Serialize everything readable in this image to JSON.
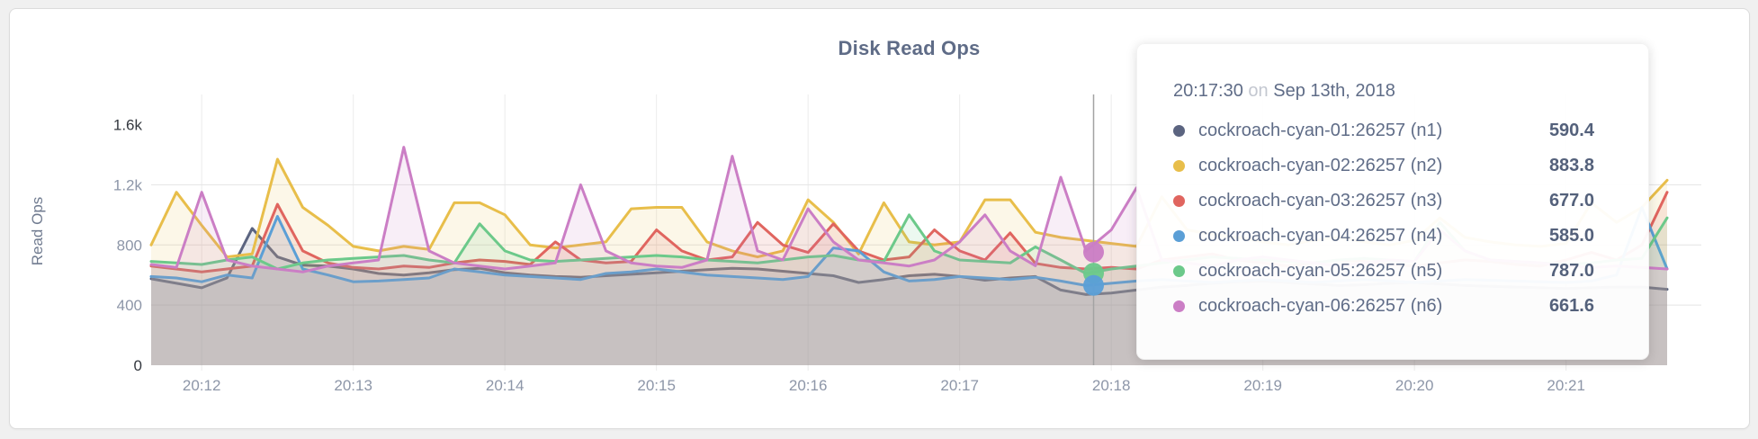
{
  "page": {
    "background": "#f0f0f0",
    "card_background": "#ffffff",
    "accent_text": "#5F6C87"
  },
  "chart": {
    "title": "Disk Read Ops"
  },
  "tooltip": {
    "time": "20:17:30",
    "on_word": "on",
    "date": "Sep 13th, 2018",
    "rows": [
      {
        "id": "n1",
        "name": "cockroach-cyan-01:26257 (n1)",
        "value": "590.4",
        "color": "#5b6480"
      },
      {
        "id": "n2",
        "name": "cockroach-cyan-02:26257 (n2)",
        "value": "883.8",
        "color": "#e8be4a"
      },
      {
        "id": "n3",
        "name": "cockroach-cyan-03:26257 (n3)",
        "value": "677.0",
        "color": "#e0655f"
      },
      {
        "id": "n4",
        "name": "cockroach-cyan-04:26257 (n4)",
        "value": "585.0",
        "color": "#5b9fd6"
      },
      {
        "id": "n5",
        "name": "cockroach-cyan-05:26257 (n5)",
        "value": "787.0",
        "color": "#6cc98a"
      },
      {
        "id": "n6",
        "name": "cockroach-cyan-06:26257 (n6)",
        "value": "661.6",
        "color": "#cb7ec5"
      }
    ]
  },
  "chart_data": {
    "type": "line",
    "area_fill": true,
    "grid": true,
    "title": "Disk Read Ops",
    "ylabel": "Read Ops",
    "xlabel": "",
    "x_start": "20:11:40",
    "x_step_seconds": 10,
    "x_end": "20:21:40",
    "x_tick_labels": [
      "20:12",
      "20:13",
      "20:14",
      "20:15",
      "20:16",
      "20:17",
      "20:18",
      "20:19",
      "20:20",
      "20:21"
    ],
    "x_first_tick_index": 2,
    "x_tick_index_step": 6,
    "y_ticks": [
      0,
      400,
      800,
      1200,
      1600
    ],
    "y_tick_labels": [
      "0",
      "400",
      "800",
      "1.2k",
      "1.6k"
    ],
    "ylim": [
      0,
      1790
    ],
    "legend_position": "tooltip",
    "series": [
      {
        "id": "n1",
        "name": "cockroach-cyan-01:26257 (n1)",
        "color": "#5b6480",
        "values": [
          575,
          545,
          515,
          580,
          910,
          720,
          665,
          660,
          640,
          610,
          600,
          615,
          635,
          645,
          615,
          600,
          590,
          585,
          595,
          605,
          615,
          625,
          635,
          645,
          640,
          625,
          610,
          595,
          550,
          570,
          595,
          605,
          590,
          565,
          580,
          590,
          500,
          470,
          480,
          500,
          520,
          530,
          545,
          555,
          560,
          550,
          540,
          530,
          535,
          545,
          550,
          540,
          530,
          525,
          520,
          515,
          510,
          515,
          520,
          520,
          505
        ]
      },
      {
        "id": "n2",
        "name": "cockroach-cyan-02:26257 (n2)",
        "color": "#e8be4a",
        "values": [
          800,
          1150,
          930,
          720,
          740,
          1370,
          1050,
          930,
          790,
          760,
          790,
          770,
          1080,
          1080,
          1000,
          800,
          780,
          800,
          820,
          1040,
          1050,
          1050,
          820,
          760,
          720,
          760,
          1100,
          950,
          740,
          1080,
          820,
          800,
          820,
          1100,
          1100,
          884,
          850,
          830,
          810,
          790,
          1120,
          900,
          870,
          850,
          820,
          800,
          830,
          850,
          820,
          800,
          830,
          980,
          850,
          820,
          800,
          790,
          810,
          1080,
          950,
          1050,
          1230
        ]
      },
      {
        "id": "n3",
        "name": "cockroach-cyan-03:26257 (n3)",
        "color": "#e0655f",
        "values": [
          660,
          640,
          620,
          640,
          660,
          1070,
          760,
          680,
          650,
          640,
          660,
          650,
          680,
          700,
          690,
          670,
          820,
          700,
          680,
          690,
          900,
          760,
          700,
          720,
          950,
          800,
          750,
          940,
          760,
          700,
          720,
          900,
          760,
          700,
          880,
          677,
          650,
          640,
          650,
          640,
          700,
          720,
          740,
          700,
          680,
          660,
          680,
          700,
          690,
          670,
          660,
          680,
          700,
          690,
          670,
          660,
          700,
          750,
          700,
          800,
          1150
        ]
      },
      {
        "id": "n4",
        "name": "cockroach-cyan-04:26257 (n4)",
        "color": "#5b9fd6",
        "values": [
          590,
          580,
          555,
          600,
          580,
          990,
          640,
          600,
          555,
          560,
          570,
          580,
          640,
          620,
          600,
          590,
          580,
          570,
          610,
          620,
          640,
          620,
          600,
          590,
          580,
          570,
          590,
          780,
          760,
          620,
          560,
          570,
          590,
          580,
          570,
          585,
          560,
          530,
          545,
          560,
          570,
          560,
          550,
          560,
          570,
          560,
          550,
          560,
          570,
          560,
          550,
          560,
          570,
          565,
          560,
          555,
          550,
          560,
          600,
          1050,
          640
        ]
      },
      {
        "id": "n5",
        "name": "cockroach-cyan-05:26257 (n5)",
        "color": "#6cc98a",
        "values": [
          690,
          680,
          670,
          700,
          720,
          640,
          680,
          700,
          710,
          720,
          730,
          700,
          680,
          940,
          760,
          700,
          690,
          700,
          710,
          720,
          730,
          720,
          700,
          690,
          680,
          700,
          720,
          730,
          700,
          690,
          1000,
          760,
          700,
          690,
          680,
          787,
          700,
          610,
          640,
          660,
          680,
          700,
          720,
          710,
          700,
          690,
          680,
          700,
          710,
          700,
          690,
          950,
          760,
          700,
          690,
          680,
          670,
          680,
          700,
          710,
          980
        ]
      },
      {
        "id": "n6",
        "name": "cockroach-cyan-06:26257 (n6)",
        "color": "#cb7ec5",
        "values": [
          670,
          650,
          1150,
          700,
          660,
          640,
          620,
          660,
          680,
          700,
          1450,
          760,
          680,
          660,
          640,
          660,
          680,
          1200,
          760,
          680,
          660,
          650,
          700,
          1390,
          760,
          700,
          1040,
          820,
          700,
          680,
          660,
          700,
          820,
          1000,
          760,
          661.6,
          1250,
          760,
          900,
          1180,
          700,
          680,
          660,
          700,
          720,
          700,
          680,
          660,
          680,
          700,
          690,
          900,
          760,
          700,
          690,
          680,
          660,
          650,
          660,
          650,
          640
        ]
      }
    ],
    "hover": {
      "time": "20:17:30",
      "x_index": 37.3,
      "dots": [
        {
          "series": "n6",
          "value": 752,
          "color": "#cb7ec5"
        },
        {
          "series": "n5",
          "value": 612,
          "color": "#6cc98a"
        },
        {
          "series": "n4",
          "value": 531,
          "color": "#5b9fd6"
        }
      ]
    }
  }
}
